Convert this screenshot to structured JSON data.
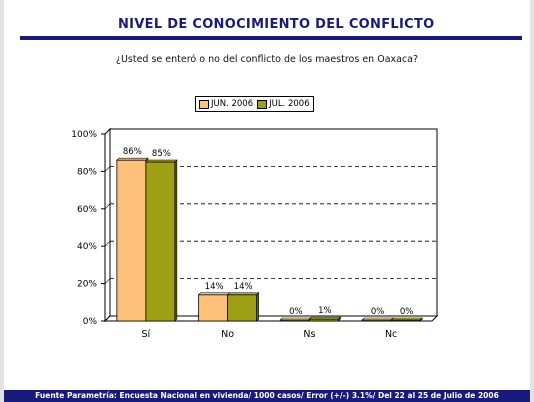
{
  "header": {
    "title": "NIVEL DE CONOCIMIENTO DEL CONFLICTO",
    "question": "¿Usted se enteró o no del conflicto de los maestros en Oaxaca?"
  },
  "footer": {
    "source": "Fuente Parametría: Encuesta Nacional en vivienda/ 1000 casos/ Error (+/-) 3.1%/ Del 22 al 25 de Julio de 2006"
  },
  "colors": {
    "title": "#1a1a7a",
    "series_jun": "#ffc07a",
    "series_jul": "#9f9f16"
  },
  "chart_data": {
    "type": "bar",
    "categories": [
      "Sí",
      "No",
      "Ns",
      "Nc"
    ],
    "series": [
      {
        "name": "JUN. 2006",
        "values": [
          86,
          14,
          0,
          0
        ],
        "labels": [
          "86%",
          "14%",
          "0%",
          "0%"
        ],
        "color": "#ffc07a"
      },
      {
        "name": "JUL. 2006",
        "values": [
          85,
          14,
          1,
          0
        ],
        "labels": [
          "85%",
          "14%",
          "1%",
          "0%"
        ],
        "color": "#9f9f16"
      }
    ],
    "ylim": [
      0,
      100
    ],
    "yticks": [
      0,
      20,
      40,
      60,
      80,
      100
    ],
    "ytick_labels": [
      "0%",
      "20%",
      "40%",
      "60%",
      "80%",
      "100%"
    ],
    "grid": "dashed horizontal",
    "legend": "top-center"
  }
}
